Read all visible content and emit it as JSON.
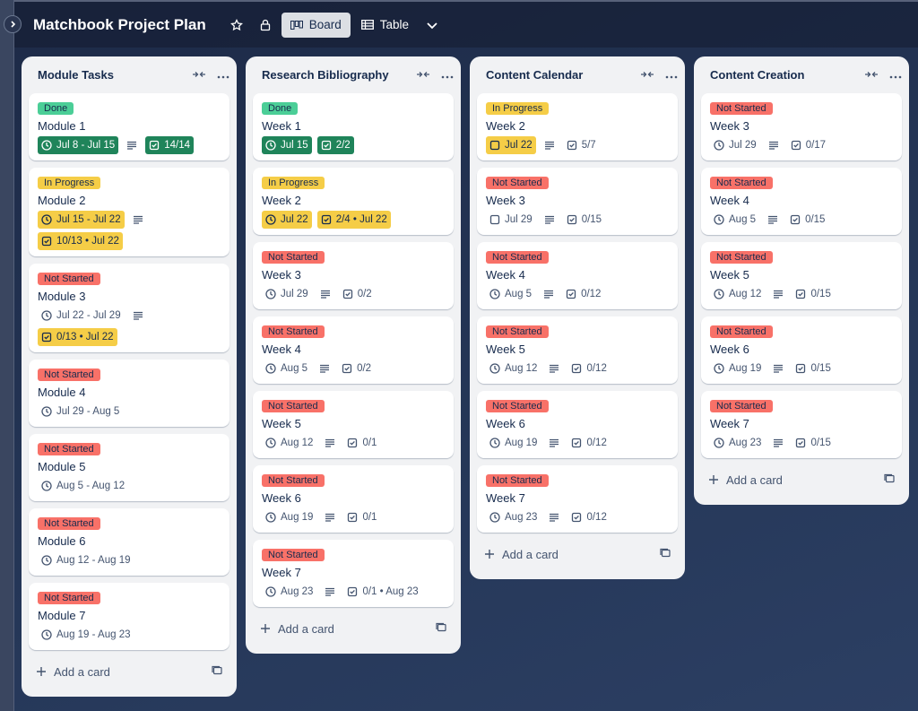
{
  "header": {
    "title": "Matchbook Project Plan",
    "views": [
      "Board",
      "Table"
    ]
  },
  "lists": [
    {
      "title": "Module Tasks",
      "add_card": "Add a card",
      "cards": [
        {
          "label": "Done",
          "label_color": "green",
          "title": "Module 1",
          "date": "Jul 8 - Jul 15",
          "date_color": "green",
          "description": true,
          "checklist": "14/14",
          "checklist_color": "green"
        },
        {
          "label": "In Progress",
          "label_color": "yellow",
          "title": "Module 2",
          "date": "Jul 15 - Jul 22",
          "date_color": "yellow",
          "description": true,
          "checklist": "10/13 • Jul 22",
          "checklist_color": "yellow"
        },
        {
          "label": "Not Started",
          "label_color": "red",
          "title": "Module 3",
          "date": "Jul 22 - Jul 29",
          "description": true,
          "checklist": "0/13 • Jul 22",
          "checklist_color": "yellow"
        },
        {
          "label": "Not Started",
          "label_color": "red",
          "title": "Module 4",
          "date": "Jul 29 - Aug 5"
        },
        {
          "label": "Not Started",
          "label_color": "red",
          "title": "Module 5",
          "date": "Aug 5 - Aug 12"
        },
        {
          "label": "Not Started",
          "label_color": "red",
          "title": "Module 6",
          "date": "Aug 12 - Aug 19"
        },
        {
          "label": "Not Started",
          "label_color": "red",
          "title": "Module 7",
          "date": "Aug 19 - Aug 23"
        }
      ]
    },
    {
      "title": "Research Bibliography",
      "add_card": "Add a card",
      "cards": [
        {
          "label": "Done",
          "label_color": "green",
          "title": "Week 1",
          "date": "Jul 15",
          "date_color": "green",
          "checklist": "2/2",
          "checklist_color": "green"
        },
        {
          "label": "In Progress",
          "label_color": "yellow",
          "title": "Week 2",
          "date": "Jul 22",
          "date_color": "yellow",
          "checklist": "2/4 • Jul 22",
          "checklist_color": "yellow"
        },
        {
          "label": "Not Started",
          "label_color": "red",
          "title": "Week 3",
          "date": "Jul 29",
          "description": true,
          "checklist": "0/2"
        },
        {
          "label": "Not Started",
          "label_color": "red",
          "title": "Week 4",
          "date": "Aug 5",
          "description": true,
          "checklist": "0/2"
        },
        {
          "label": "Not Started",
          "label_color": "red",
          "title": "Week 5",
          "date": "Aug 12",
          "description": true,
          "checklist": "0/1"
        },
        {
          "label": "Not Started",
          "label_color": "red",
          "title": "Week 6",
          "date": "Aug 19",
          "description": true,
          "checklist": "0/1"
        },
        {
          "label": "Not Started",
          "label_color": "red",
          "title": "Week 7",
          "date": "Aug 23",
          "description": true,
          "checklist": "0/1 • Aug 23"
        }
      ]
    },
    {
      "title": "Content Calendar",
      "add_card": "Add a card",
      "cards": [
        {
          "label": "In Progress",
          "label_color": "yellow",
          "title": "Week 2",
          "date": "Jul 22",
          "date_color": "yellow",
          "date_icon": "checkbox",
          "description": true,
          "checklist": "5/7"
        },
        {
          "label": "Not Started",
          "label_color": "red",
          "title": "Week 3",
          "date": "Jul 29",
          "date_icon": "checkbox",
          "description": true,
          "checklist": "0/15"
        },
        {
          "label": "Not Started",
          "label_color": "red",
          "title": "Week 4",
          "date": "Aug 5",
          "description": true,
          "checklist": "0/12"
        },
        {
          "label": "Not Started",
          "label_color": "red",
          "title": "Week 5",
          "date": "Aug 12",
          "description": true,
          "checklist": "0/12"
        },
        {
          "label": "Not Started",
          "label_color": "red",
          "title": "Week 6",
          "date": "Aug 19",
          "description": true,
          "checklist": "0/12"
        },
        {
          "label": "Not Started",
          "label_color": "red",
          "title": "Week 7",
          "date": "Aug 23",
          "description": true,
          "checklist": "0/12"
        }
      ]
    },
    {
      "title": "Content Creation",
      "add_card": "Add a card",
      "cards": [
        {
          "label": "Not Started",
          "label_color": "red",
          "title": "Week 3",
          "date": "Jul 29",
          "description": true,
          "checklist": "0/17"
        },
        {
          "label": "Not Started",
          "label_color": "red",
          "title": "Week 4",
          "date": "Aug 5",
          "description": true,
          "checklist": "0/15"
        },
        {
          "label": "Not Started",
          "label_color": "red",
          "title": "Week 5",
          "date": "Aug 12",
          "description": true,
          "checklist": "0/15"
        },
        {
          "label": "Not Started",
          "label_color": "red",
          "title": "Week 6",
          "date": "Aug 19",
          "description": true,
          "checklist": "0/15"
        },
        {
          "label": "Not Started",
          "label_color": "red",
          "title": "Week 7",
          "date": "Aug 23",
          "description": true,
          "checklist": "0/15"
        }
      ]
    }
  ]
}
